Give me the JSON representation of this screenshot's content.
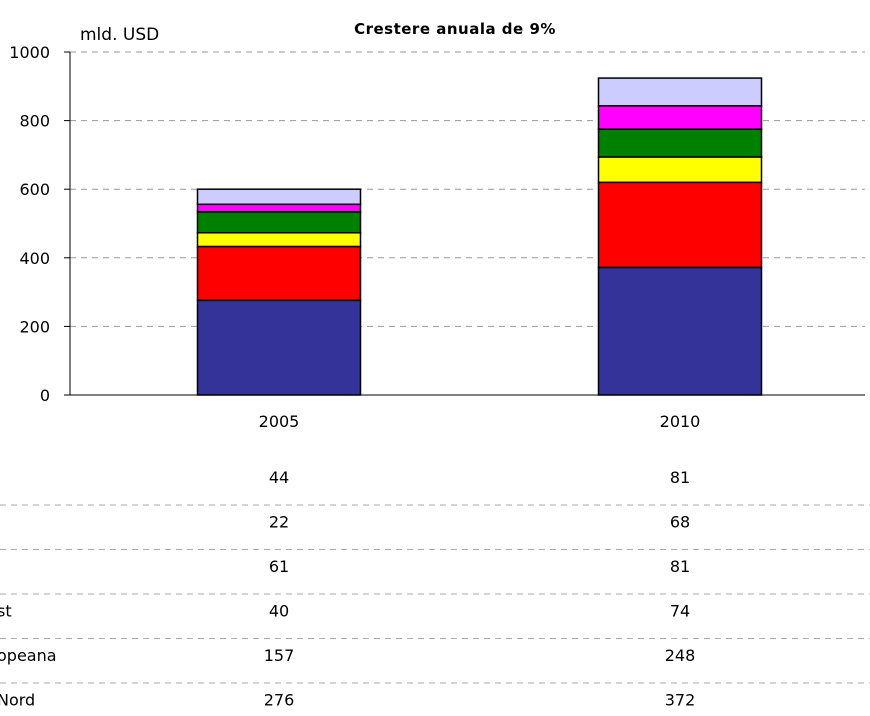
{
  "chart_data": {
    "type": "bar",
    "stacked": true,
    "title": "Crestere anuala de 9%",
    "ylabel": "mld. USD",
    "ylim": [
      0,
      1000
    ],
    "yticks": [
      "0",
      "200",
      "400",
      "600",
      "800",
      "1000"
    ],
    "grid": true,
    "categories": [
      "2005",
      "2010"
    ],
    "series": [
      {
        "name": "Nord",
        "values": [
          276,
          372
        ],
        "color": "#333399"
      },
      {
        "name": "opeana",
        "values": [
          157,
          248
        ],
        "color": "#ff0000"
      },
      {
        "name": "st",
        "values": [
          40,
          74
        ],
        "color": "#ffff00"
      },
      {
        "values": [
          61,
          81
        ],
        "color": "#008000"
      },
      {
        "values": [
          22,
          68
        ],
        "color": "#ff00ff"
      },
      {
        "values": [
          44,
          81
        ],
        "color": "#ccccff"
      }
    ]
  }
}
